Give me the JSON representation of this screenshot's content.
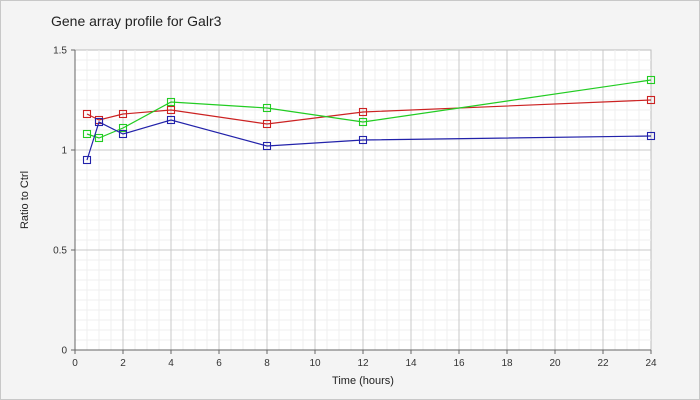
{
  "chart_data": {
    "type": "line",
    "title": "Gene array profile for Galr3",
    "xlabel": "Time (hours)",
    "ylabel": "Ratio to Ctrl",
    "xlim": [
      0,
      24
    ],
    "ylim": [
      0,
      1.5
    ],
    "x_ticks": [
      0,
      2,
      4,
      6,
      8,
      10,
      12,
      14,
      16,
      18,
      20,
      22,
      24
    ],
    "y_ticks": [
      0,
      0.5,
      1,
      1.5
    ],
    "y_tick_labels": [
      "0",
      "0.5",
      "1",
      "1.5"
    ],
    "grid": true,
    "legend": "none",
    "marker": "square",
    "series": [
      {
        "color": "#cc2222",
        "points": [
          [
            0.5,
            1.18
          ],
          [
            1,
            1.15
          ],
          [
            2,
            1.18
          ],
          [
            4,
            1.2
          ],
          [
            8,
            1.13
          ],
          [
            12,
            1.19
          ],
          [
            24,
            1.25
          ]
        ]
      },
      {
        "color": "#22cc22",
        "points": [
          [
            0.5,
            1.08
          ],
          [
            1,
            1.06
          ],
          [
            2,
            1.11
          ],
          [
            4,
            1.24
          ],
          [
            8,
            1.21
          ],
          [
            12,
            1.14
          ],
          [
            24,
            1.35
          ]
        ]
      },
      {
        "color": "#2222aa",
        "points": [
          [
            0.5,
            0.95
          ],
          [
            1,
            1.14
          ],
          [
            2,
            1.08
          ],
          [
            4,
            1.15
          ],
          [
            8,
            1.02
          ],
          [
            12,
            1.05
          ],
          [
            24,
            1.07
          ]
        ]
      }
    ]
  }
}
